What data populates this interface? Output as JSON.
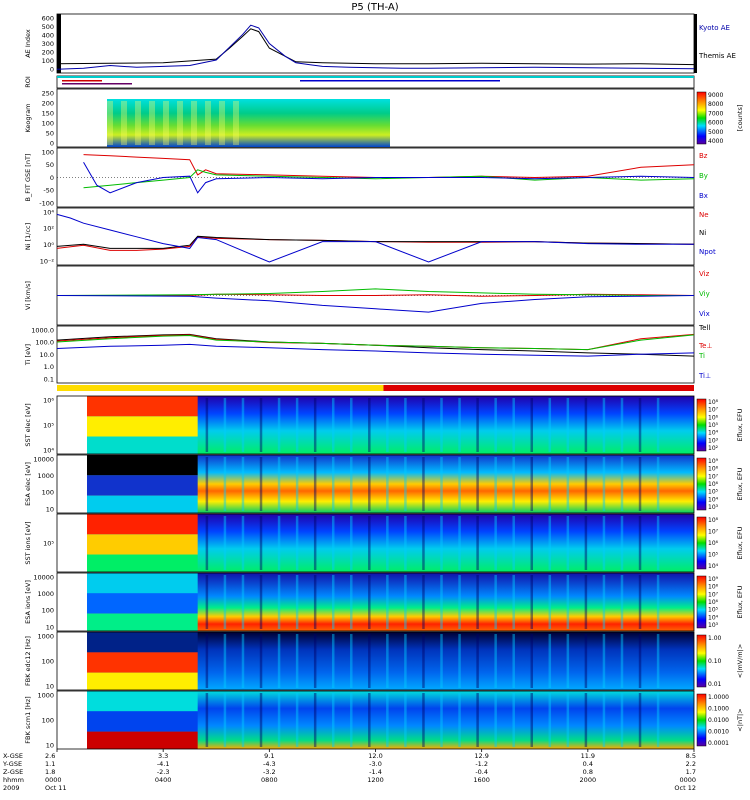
{
  "title": "P5 (TH-A)",
  "colors": {
    "kyoto": "#0000aa",
    "themis": "#000000",
    "bz": "#dd0000",
    "by": "#00bb00",
    "bx": "#0000cc",
    "roi_fast": "#ffdd00",
    "roi_slow": "#dd0000"
  },
  "chart_data": [
    {
      "type": "line",
      "panel": "ae",
      "ylabel": "AE Index",
      "ylim": [
        0,
        600
      ],
      "yticks": [
        "600",
        "500",
        "400",
        "300",
        "200",
        "100",
        "0"
      ],
      "legend": [
        "Kyoto AE",
        "Themis AE"
      ],
      "series": [
        {
          "name": "Kyoto AE",
          "x": [
            0,
            1,
            2,
            3,
            4,
            5,
            6,
            6.5,
            7,
            7.3,
            7.6,
            8,
            8.6,
            9,
            9.5,
            10,
            11,
            12,
            13,
            14,
            16,
            18,
            20,
            22,
            24
          ],
          "y": [
            20,
            30,
            60,
            40,
            50,
            60,
            120,
            260,
            400,
            500,
            470,
            300,
            160,
            90,
            70,
            50,
            40,
            35,
            30,
            30,
            35,
            40,
            35,
            30,
            25
          ]
        },
        {
          "name": "Themis AE",
          "x": [
            0,
            2,
            4,
            6,
            6.5,
            7,
            7.3,
            7.6,
            8,
            9,
            10,
            12,
            14,
            16,
            18,
            20,
            22,
            24
          ],
          "y": [
            80,
            85,
            90,
            130,
            250,
            380,
            460,
            430,
            250,
            100,
            90,
            80,
            80,
            85,
            80,
            75,
            80,
            70
          ]
        }
      ]
    },
    {
      "type": "heatmap",
      "panel": "keogram",
      "ylabel": "Keogram",
      "yticks": [
        "250",
        "200",
        "150",
        "100",
        "50",
        "0"
      ],
      "colorbar": {
        "label": "[counts]",
        "ticks": [
          "9000",
          "8000",
          "7000",
          "6000",
          "5000",
          "4000"
        ]
      }
    },
    {
      "type": "line",
      "panel": "bfield",
      "ylabel": "B_FIT GSE [nT]",
      "ylim": [
        -100,
        100
      ],
      "yticks": [
        "100",
        "50",
        "0",
        "-50",
        "-100"
      ],
      "series": [
        {
          "name": "Bz",
          "x": [
            1,
            2,
            3,
            4,
            5,
            5.3,
            5.6,
            6,
            8,
            10,
            12,
            14,
            16,
            18,
            20,
            22,
            24
          ],
          "y": [
            90,
            85,
            80,
            75,
            70,
            10,
            30,
            15,
            10,
            5,
            0,
            0,
            5,
            0,
            5,
            40,
            50
          ]
        },
        {
          "name": "By",
          "x": [
            1,
            2,
            3,
            4,
            5,
            5.3,
            5.6,
            6,
            8,
            10,
            12,
            14,
            16,
            18,
            20,
            22,
            24
          ],
          "y": [
            -40,
            -30,
            -20,
            -10,
            0,
            30,
            20,
            10,
            5,
            0,
            -5,
            0,
            5,
            -10,
            0,
            -10,
            -5
          ]
        },
        {
          "name": "Bx",
          "x": [
            1,
            1.5,
            2,
            3,
            4,
            5,
            5.3,
            5.6,
            6,
            8,
            10,
            12,
            14,
            16,
            18,
            20,
            22,
            24
          ],
          "y": [
            60,
            -30,
            -60,
            -20,
            0,
            5,
            -60,
            -20,
            -5,
            0,
            -5,
            0,
            0,
            0,
            -5,
            0,
            5,
            0
          ]
        }
      ]
    },
    {
      "type": "line",
      "panel": "density",
      "ylabel": "Ni [1/cc]",
      "yticks": [
        "10⁴",
        "10²",
        "10⁰",
        "10⁻²"
      ],
      "scale": "log",
      "series": [
        {
          "name": "Ne",
          "x": [
            0,
            1,
            2,
            3,
            4,
            5,
            5.3,
            6,
            8,
            10,
            12,
            14,
            16,
            18,
            20,
            22,
            24
          ],
          "y": [
            0.1,
            0.3,
            0.05,
            0.05,
            0.08,
            0.2,
            5,
            3,
            2,
            1.5,
            1,
            0.8,
            0.8,
            1,
            0.6,
            0.5,
            0.4
          ]
        },
        {
          "name": "Ni",
          "x": [
            0,
            1,
            2,
            3,
            4,
            5,
            5.3,
            6,
            8,
            10,
            12,
            14,
            16,
            18,
            20,
            22,
            24
          ],
          "y": [
            0.2,
            0.4,
            0.1,
            0.1,
            0.1,
            0.3,
            6,
            4,
            2,
            1.5,
            1,
            1,
            1,
            1,
            0.6,
            0.5,
            0.4
          ]
        },
        {
          "name": "Npot",
          "x": [
            0,
            0.5,
            1,
            2,
            3,
            4,
            5,
            5.3,
            6,
            8,
            10,
            12,
            14,
            16,
            18,
            20,
            22,
            24
          ],
          "y": [
            10000,
            3000,
            500,
            50,
            5,
            0.5,
            0.1,
            4,
            2,
            0.001,
            1,
            1,
            0.001,
            1,
            1,
            0.5,
            0.4,
            0.4
          ]
        }
      ]
    },
    {
      "type": "line",
      "panel": "velocity",
      "ylabel": "Vi [km/s]",
      "yticks": [
        "400",
        "200",
        "0",
        "-200",
        "-400"
      ],
      "series": [
        {
          "name": "Viz",
          "x": [
            0,
            5,
            6,
            8,
            10,
            12,
            14,
            16,
            18,
            20,
            22,
            24
          ],
          "y": [
            0,
            0,
            20,
            10,
            0,
            0,
            10,
            -10,
            0,
            20,
            10,
            0
          ]
        },
        {
          "name": "Viy",
          "x": [
            0,
            5,
            6,
            8,
            10,
            12,
            14,
            16,
            18,
            20,
            22,
            24
          ],
          "y": [
            0,
            10,
            20,
            30,
            60,
            100,
            60,
            40,
            20,
            10,
            0,
            0
          ]
        },
        {
          "name": "Vix",
          "x": [
            0,
            5,
            6,
            8,
            10,
            12,
            14,
            16,
            18,
            20,
            22,
            24
          ],
          "y": [
            0,
            -10,
            -40,
            -80,
            -150,
            -200,
            -250,
            -120,
            -60,
            -20,
            -10,
            0
          ]
        }
      ]
    },
    {
      "type": "line",
      "panel": "temperature",
      "ylabel": "Ti [eV]",
      "scale": "log",
      "yticks": [
        "1000.0",
        "100.0",
        "10.0",
        "1.0",
        "0.1"
      ],
      "series": [
        {
          "name": "Tell",
          "x": [
            0,
            2,
            4,
            5,
            6,
            8,
            10,
            12,
            14,
            16,
            18,
            20,
            22,
            24
          ],
          "y": [
            300,
            600,
            900,
            1000,
            400,
            200,
            150,
            100,
            60,
            40,
            30,
            20,
            15,
            10
          ]
        },
        {
          "name": "Te⊥",
          "x": [
            0,
            2,
            4,
            5,
            6,
            8,
            10,
            12,
            14,
            16,
            18,
            20,
            22,
            24
          ],
          "y": [
            250,
            500,
            800,
            900,
            350,
            180,
            150,
            100,
            80,
            60,
            50,
            40,
            400,
            1000
          ]
        },
        {
          "name": "Ti",
          "x": [
            0,
            2,
            4,
            5,
            6,
            8,
            10,
            12,
            14,
            16,
            18,
            20,
            22,
            24
          ],
          "y": [
            200,
            400,
            700,
            800,
            300,
            200,
            150,
            100,
            80,
            60,
            50,
            40,
            300,
            900
          ]
        },
        {
          "name": "Ti⊥",
          "x": [
            0,
            2,
            4,
            5,
            6,
            8,
            10,
            12,
            14,
            16,
            18,
            20,
            22,
            24
          ],
          "y": [
            50,
            80,
            100,
            120,
            80,
            60,
            40,
            30,
            20,
            15,
            12,
            10,
            15,
            20
          ]
        }
      ]
    },
    {
      "type": "heatmap",
      "panel": "sst_e",
      "ylabel": "SST elec [eV]",
      "yticks": [
        "10⁶",
        "10⁵",
        "10⁴"
      ]
    },
    {
      "type": "heatmap",
      "panel": "esa_e",
      "ylabel": "ESA elec [eV]",
      "yticks": [
        "10000",
        "1000",
        "100",
        "10"
      ]
    },
    {
      "type": "heatmap",
      "panel": "sst_i",
      "ylabel": "SST ions [eV]",
      "yticks": [
        "10⁵"
      ]
    },
    {
      "type": "heatmap",
      "panel": "esa_i",
      "ylabel": "ESA ions [eV]",
      "yticks": [
        "10000",
        "1000",
        "100",
        "10"
      ]
    },
    {
      "type": "heatmap",
      "panel": "fbk_e",
      "ylabel": "FBK edc12 [Hz]",
      "yticks": [
        "1000",
        "100",
        "10"
      ]
    },
    {
      "type": "heatmap",
      "panel": "fbk_b",
      "ylabel": "FBK scm1 [Hz]",
      "yticks": [
        "1000",
        "100",
        "10"
      ]
    }
  ],
  "colorbars": {
    "sst_e": {
      "label": "Eflux, EFU",
      "ticks": [
        "10⁸",
        "10⁷",
        "10⁶",
        "10⁵",
        "10⁴",
        "10³",
        "10²"
      ]
    },
    "esa_e": {
      "label": "Eflux, EFU",
      "ticks": [
        "10⁹",
        "10⁸",
        "10⁷",
        "10⁶",
        "10⁵",
        "10⁴",
        "10³"
      ]
    },
    "sst_i": {
      "label": "Eflux, EFU",
      "ticks": [
        "10⁸",
        "10⁷",
        "10⁶",
        "10⁵",
        "10⁴"
      ]
    },
    "esa_i": {
      "label": "Eflux, EFU",
      "ticks": [
        "10⁹",
        "10⁸",
        "10⁷",
        "10⁶",
        "10⁵",
        "10⁴",
        "10³"
      ]
    },
    "fbk_e": {
      "label": "<|mV/m|>",
      "ticks": [
        "1.00",
        "0.10",
        "0.01"
      ]
    },
    "fbk_b": {
      "label": "<|nT|>",
      "ticks": [
        "1.0000",
        "0.1000",
        "0.0100",
        "0.0010",
        "0.0001"
      ]
    }
  },
  "roi_label": "ROI",
  "footer": {
    "row_labels": [
      "X-GSE",
      "Y-GSE",
      "Z-GSE",
      "hhmm",
      "2009"
    ],
    "columns": [
      {
        "values": [
          "2.6",
          "1.1",
          "1.8",
          "0000",
          "Oct 11"
        ]
      },
      {
        "values": [
          "3.3",
          "-4.1",
          "-2.3",
          "0400",
          ""
        ]
      },
      {
        "values": [
          "9.1",
          "-4.3",
          "-3.2",
          "0800",
          ""
        ]
      },
      {
        "values": [
          "12.0",
          "-3.0",
          "-1.4",
          "1200",
          ""
        ]
      },
      {
        "values": [
          "12.9",
          "-1.2",
          "-0.4",
          "1600",
          ""
        ]
      },
      {
        "values": [
          "11.9",
          "0.4",
          "0.8",
          "2000",
          ""
        ]
      },
      {
        "values": [
          "8.5",
          "2.2",
          "1.7",
          "0000",
          "Oct 12"
        ]
      }
    ]
  }
}
